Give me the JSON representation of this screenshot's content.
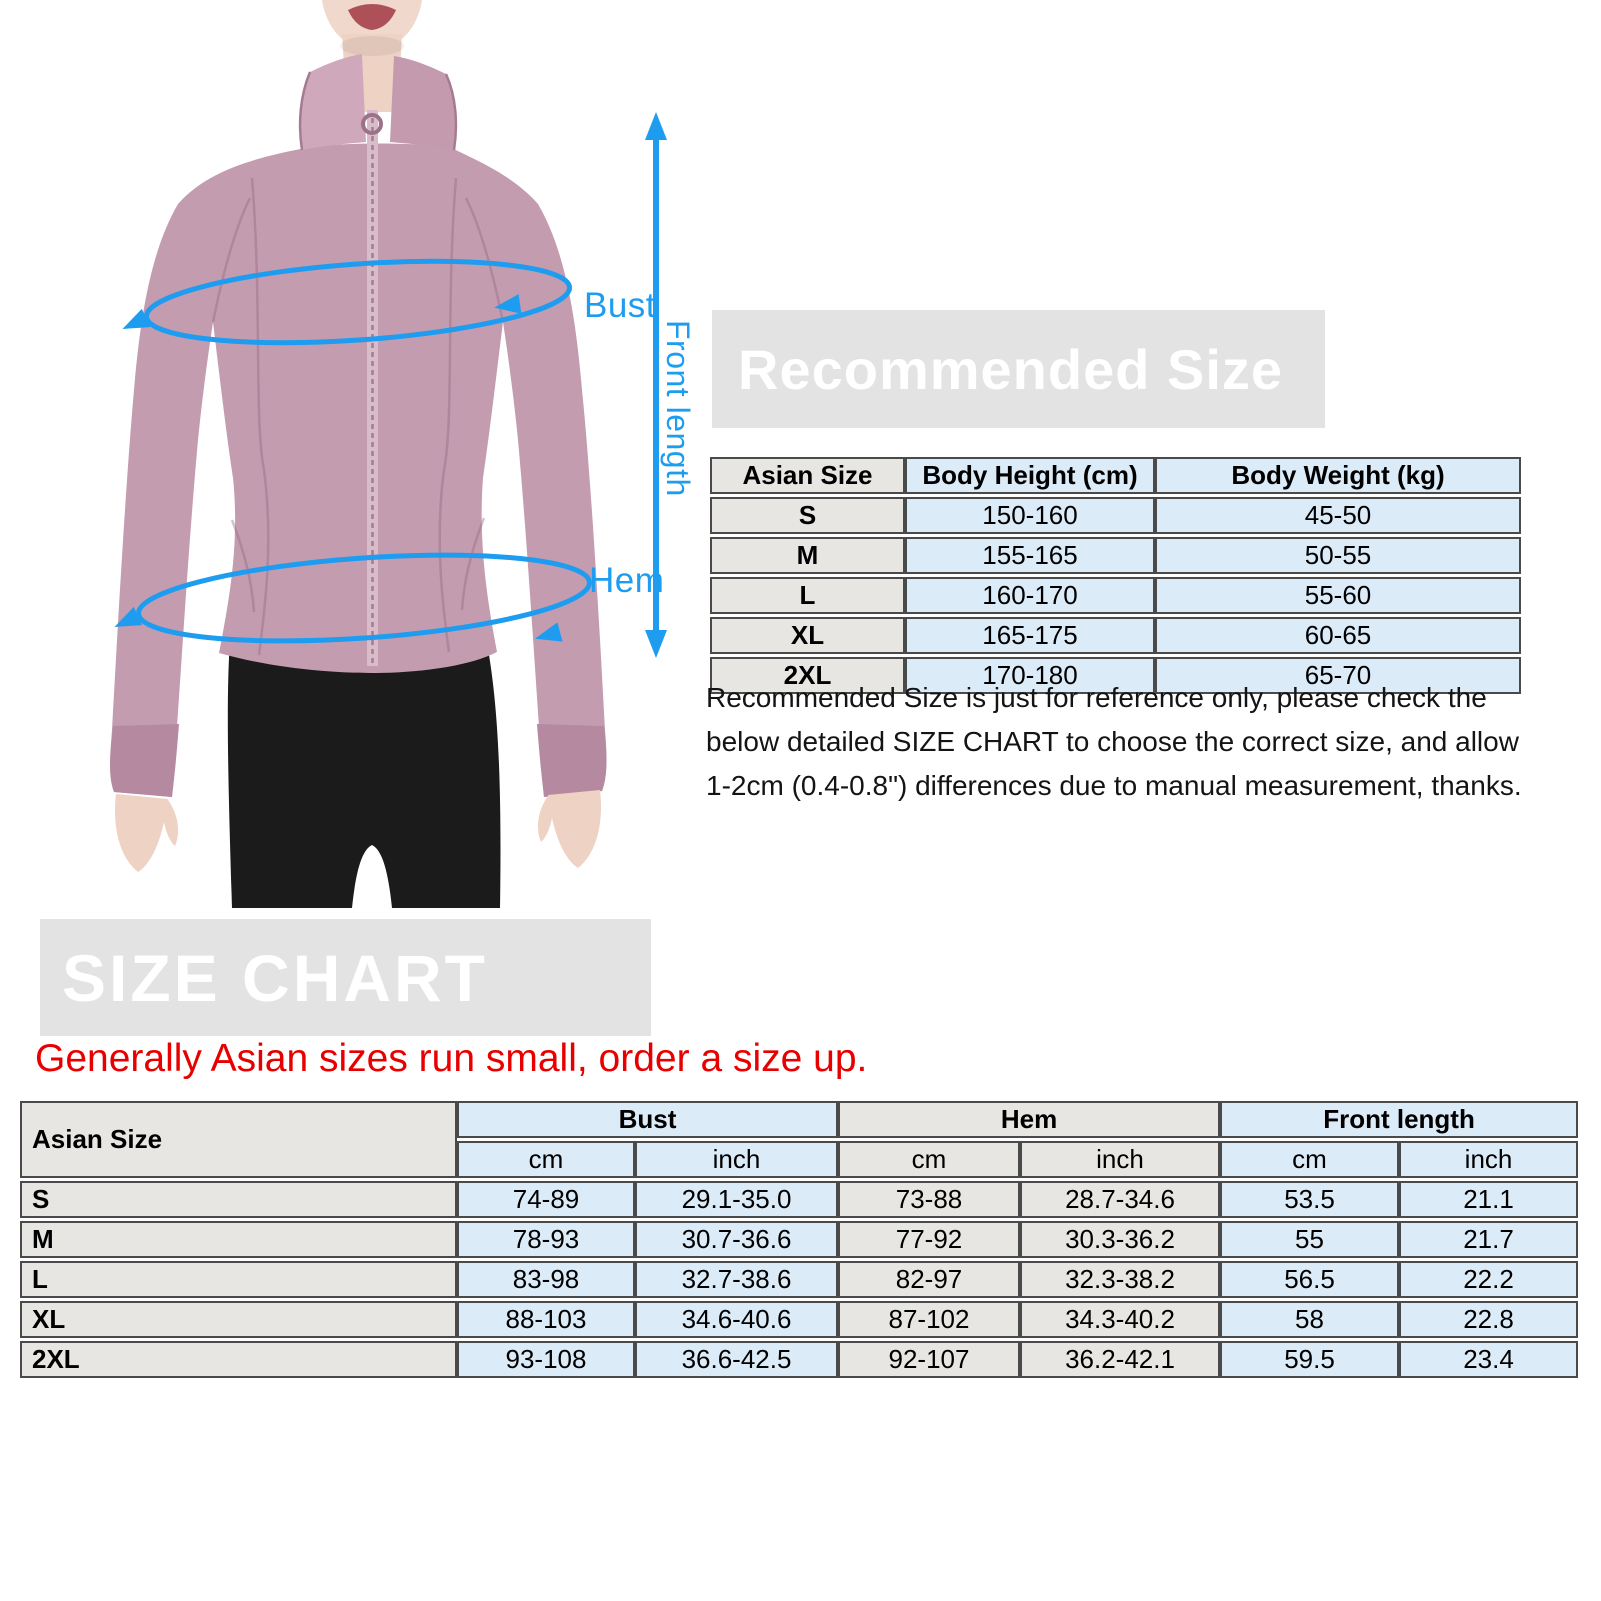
{
  "hero": {
    "annotations": {
      "bust_label": "Bust",
      "hem_label": "Hem",
      "front_length_label": "Front length"
    }
  },
  "recommended": {
    "title": "Recommended Size",
    "table": {
      "headers": [
        "Asian Size",
        "Body Height (cm)",
        "Body Weight (kg)"
      ],
      "rows": [
        [
          "S",
          "150-160",
          "45-50"
        ],
        [
          "M",
          "155-165",
          "50-55"
        ],
        [
          "L",
          "160-170",
          "55-60"
        ],
        [
          "XL",
          "165-175",
          "60-65"
        ],
        [
          "2XL",
          "170-180",
          "65-70"
        ]
      ]
    },
    "note_lines": [
      "Recommended Size is just for reference only, please check the",
      "below detailed SIZE CHART  to choose the correct size, and allow",
      "1-2cm (0.4-0.8\") differences due to manual measurement, thanks."
    ]
  },
  "size_chart": {
    "title": "SIZE CHART",
    "warning": "Generally Asian sizes run small, order a size up.",
    "table": {
      "corner_header": "Asian Size",
      "group_headers": [
        "Bust",
        "Hem",
        "Front length"
      ],
      "unit_headers": [
        "cm",
        "inch",
        "cm",
        "inch",
        "cm",
        "inch"
      ],
      "rows": [
        [
          "S",
          "74-89",
          "29.1-35.0",
          "73-88",
          "28.7-34.6",
          "53.5",
          "21.1"
        ],
        [
          "M",
          "78-93",
          "30.7-36.6",
          "77-92",
          "30.3-36.2",
          "55",
          "21.7"
        ],
        [
          "L",
          "83-98",
          "32.7-38.6",
          "82-97",
          "32.3-38.2",
          "56.5",
          "22.2"
        ],
        [
          "XL",
          "88-103",
          "34.6-40.6",
          "87-102",
          "34.3-40.2",
          "58",
          "22.8"
        ],
        [
          "2XL",
          "93-108",
          "36.6-42.5",
          "92-107",
          "36.2-42.1",
          "59.5",
          "23.4"
        ]
      ]
    }
  },
  "colors": {
    "annotation_blue": "#1e9df0",
    "warning_red": "#e80000",
    "banner_bg": "#e3e3e3",
    "banner_text": "#ffffff",
    "table_blue": "#dcebf8",
    "table_gray": "#e7e6e3",
    "table_border": "#4a4a4a",
    "jacket_mauve": "#c49cb0",
    "collar_mauve": "#cfa9bb",
    "leggings_black": "#1b1b1b",
    "skin_tone": "#f0d8cc"
  }
}
